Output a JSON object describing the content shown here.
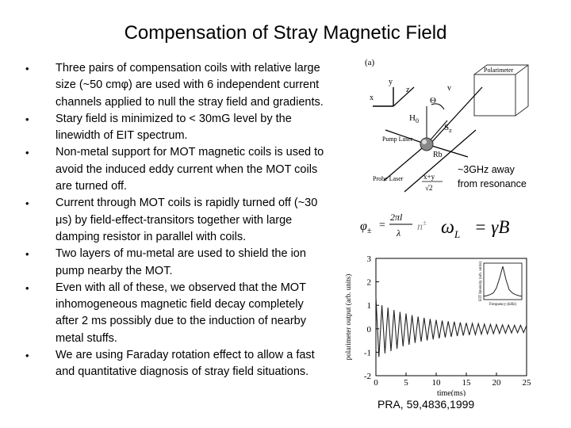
{
  "slide": {
    "title": "Compensation of Stray Magnetic Field",
    "bullets": [
      "Three pairs of compensation coils with relative large size (~50 cmφ) are used with 6 independent current channels applied to null the stray field and gradients.",
      "Stary field is minimized to < 30mG level by the linewidth of EIT spectrum.",
      "Non-metal support for MOT magnetic coils is used to avoid the induced eddy current when the MOT coils are turned off.",
      "Current through MOT coils is rapidly turned off (~30 μs) by field-effect-transitors together with large damping resistor in parallel  with coils.",
      "Two layers of mu-metal are used to shield the ion pump nearby the MOT.",
      "Even with all of these, we observed that the MOT inhomogeneous magnetic field decay completely after 2 ms possibly due to the induction of nearby metal stuffs.",
      "We are using Faraday rotation effect to allow a fast and quantitative diagnosis of stray field situations."
    ],
    "bullet_glyph": "•",
    "resonance_note": [
      "~3GHz away",
      "from resonance"
    ],
    "citation": "PRA, 59,4836,1999"
  },
  "diagram": {
    "panel_label": "(a)",
    "polarimeter": "Polarimeter",
    "pump_laser": "Pump Laser",
    "probe_laser": "Probe Laser",
    "rb": "Rb",
    "h0": "H",
    "h0_sub": "0",
    "theta": "Θ",
    "sz": "S",
    "sz_sub": "z",
    "axis_x": "x",
    "axis_y": "y",
    "axis_z": "z",
    "axis_v": "v",
    "xy": "x+y",
    "sqrt2": "√2"
  },
  "formulas": {
    "phi": "φ",
    "phi_sub": "±",
    "eq": "=",
    "num": "2πl",
    "den": "λ",
    "n": "n",
    "n_sup": "±",
    "larmor_omega": "ω",
    "larmor_sub": "L",
    "larmor_rhs": "= γB"
  },
  "chart_data": [
    {
      "type": "line",
      "xlabel": "time(ms)",
      "ylabel": "polarimeter output (arb. units)",
      "xlim": [
        0,
        25
      ],
      "ylim": [
        -2,
        3
      ],
      "xticks": [
        "0",
        "5",
        "10",
        "15",
        "20",
        "25"
      ],
      "yticks": [
        "3",
        "2",
        "1",
        "0",
        "-1",
        "-2"
      ],
      "series": [
        {
          "x": [
            0,
            0.5,
            1,
            1.5,
            2,
            2.5,
            3,
            3.5,
            4,
            4.5,
            5,
            5.5,
            6,
            6.5,
            7,
            7.5,
            8,
            8.5,
            9,
            9.5,
            10,
            10.5,
            11,
            11.5,
            12,
            12.5,
            13,
            13.5,
            14,
            14.5,
            15,
            15.5,
            16,
            16.5,
            17,
            17.5,
            18,
            18.5,
            19,
            19.5,
            20,
            20.5,
            21,
            21.5,
            22,
            22.5,
            23,
            23.5,
            24,
            24.5,
            25
          ],
          "y": [
            1.35,
            -1.2,
            1.0,
            -1.05,
            0.9,
            -0.95,
            0.8,
            -0.85,
            0.72,
            -0.75,
            0.65,
            -0.68,
            0.58,
            -0.6,
            0.52,
            -0.55,
            0.47,
            -0.5,
            0.42,
            -0.45,
            0.38,
            -0.41,
            0.35,
            -0.37,
            0.32,
            -0.34,
            0.3,
            -0.31,
            0.27,
            -0.29,
            0.25,
            -0.27,
            0.23,
            -0.25,
            0.22,
            -0.23,
            0.2,
            -0.22,
            0.19,
            -0.21,
            0.18,
            -0.2,
            0.17,
            -0.19,
            0.16,
            -0.18,
            0.15,
            -0.17,
            0.15,
            -0.16,
            0.14
          ]
        }
      ]
    },
    {
      "type": "line",
      "xlabel": "Frequency (kHz)",
      "ylabel": "EIT Intensity (arb. units)",
      "series": [
        {
          "x": [
            -150,
            -125,
            -100,
            -75,
            -50,
            -25,
            0,
            25,
            50,
            75,
            100,
            125,
            150
          ],
          "y": [
            0.1,
            0.12,
            0.15,
            0.2,
            0.35,
            0.65,
            1.0,
            0.6,
            0.3,
            0.2,
            0.15,
            0.12,
            0.1
          ]
        }
      ]
    }
  ]
}
